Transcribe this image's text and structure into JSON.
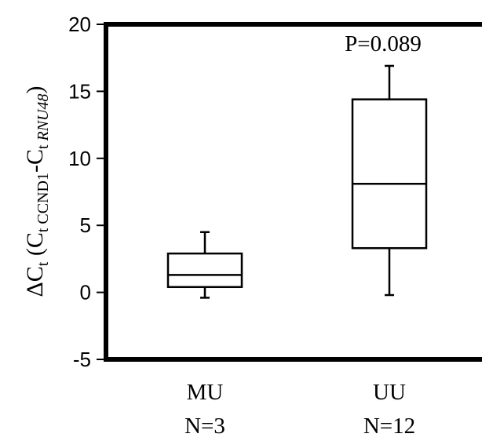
{
  "chart_data": {
    "type": "box",
    "ylim": [
      -5,
      20
    ],
    "yticks": [
      -5,
      0,
      5,
      10,
      15,
      20
    ],
    "ylabel": {
      "prefix": "ΔC",
      "prefix_sub": "t",
      "open": " (C",
      "sub1": "t CCND1",
      "mid": "-C",
      "sub2_plain": "t ",
      "sub2_italic": "RNU48",
      "close": ")"
    },
    "annotation": "P=0.089",
    "boxes": [
      {
        "category": "MU",
        "n_label": "N=3",
        "whisker_low": -0.4,
        "q1": 0.4,
        "median": 1.3,
        "q3": 2.9,
        "whisker_high": 4.5
      },
      {
        "category": "UU",
        "n_label": "N=12",
        "whisker_low": -0.2,
        "q1": 3.3,
        "median": 8.1,
        "q3": 14.4,
        "whisker_high": 16.9
      }
    ]
  }
}
